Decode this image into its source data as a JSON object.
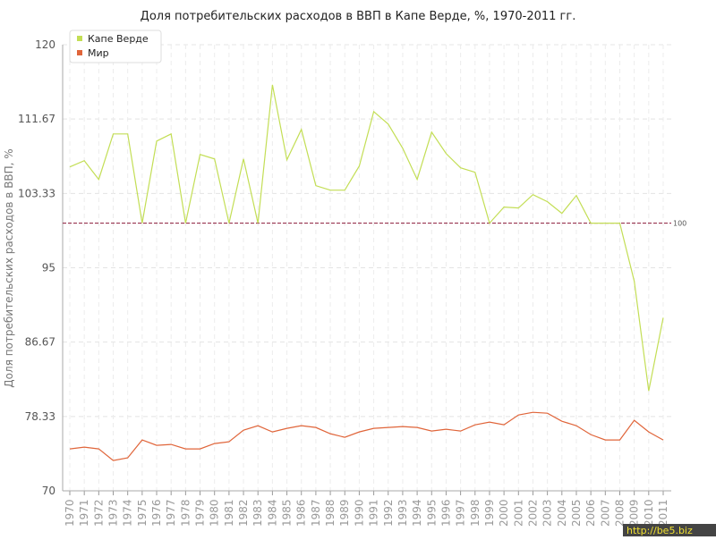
{
  "chart_data": {
    "type": "line",
    "title": "Доля потребительских расходов в ВВП в Капе Верде, %, 1970-2011 гг.",
    "y_label": "Доля потребительских расходов в ВВП, %",
    "watermark": "http://be5.biz",
    "categories": [
      "1970",
      "1971",
      "1972",
      "1973",
      "1974",
      "1975",
      "1976",
      "1977",
      "1978",
      "1979",
      "1980",
      "1981",
      "1982",
      "1983",
      "1984",
      "1985",
      "1986",
      "1987",
      "1988",
      "1989",
      "1990",
      "1991",
      "1992",
      "1993",
      "1994",
      "1995",
      "1996",
      "1997",
      "1998",
      "1999",
      "2000",
      "2001",
      "2002",
      "2003",
      "2004",
      "2005",
      "2006",
      "2007",
      "2008",
      "2009",
      "2010",
      "2011"
    ],
    "series": [
      {
        "name": "Капе Верде",
        "color": "#c3de55",
        "values": [
          106.3,
          107.0,
          104.9,
          110.0,
          110.0,
          100.0,
          109.2,
          110.0,
          100.0,
          107.7,
          107.2,
          100.0,
          107.2,
          100.0,
          115.5,
          107.1,
          110.5,
          104.2,
          103.7,
          103.7,
          106.4,
          112.5,
          111.1,
          108.4,
          104.9,
          110.2,
          107.8,
          106.2,
          105.7,
          100.0,
          101.8,
          101.7,
          103.2,
          102.4,
          101.1,
          103.1,
          100.0,
          100.0,
          100.0,
          93.5,
          81.2,
          89.4
        ]
      },
      {
        "name": "Мир",
        "color": "#e0653a",
        "values": [
          74.7,
          74.9,
          74.7,
          73.4,
          73.7,
          75.7,
          75.1,
          75.2,
          74.7,
          74.7,
          75.3,
          75.5,
          76.8,
          77.3,
          76.6,
          77.0,
          77.3,
          77.1,
          76.4,
          76.0,
          76.6,
          77.0,
          77.1,
          77.2,
          77.1,
          76.7,
          76.9,
          76.7,
          77.4,
          77.7,
          77.4,
          78.5,
          78.8,
          78.7,
          77.8,
          77.3,
          76.3,
          75.7,
          75.7,
          77.9,
          76.6,
          75.7
        ]
      }
    ],
    "reference_line": 100,
    "reference_color": "#8b1a3a",
    "ylim": [
      70,
      120
    ],
    "yticks": [
      70,
      78.33,
      86.67,
      95,
      103.33,
      111.67,
      120
    ],
    "grid": true,
    "legend": "top-left"
  }
}
